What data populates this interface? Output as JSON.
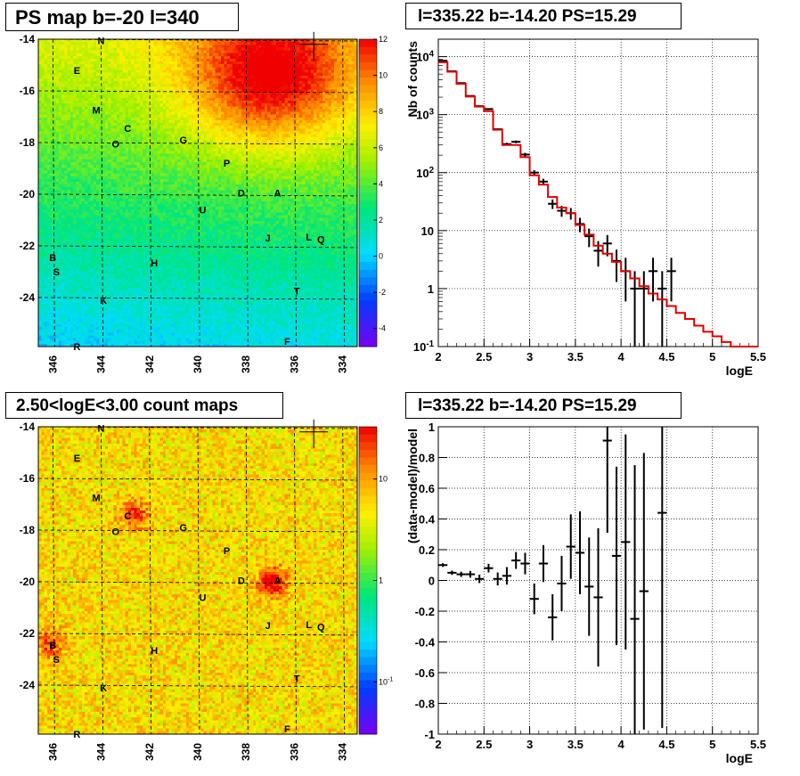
{
  "titles": {
    "map_top": "PS map b=-20 l=340",
    "spectrum": "l=335.22 b=-14.20 PS=15.29",
    "map_bottom": "2.50<logE<3.00 count maps",
    "residual": "l=335.22 b=-14.20 PS=15.29"
  },
  "sources": [
    {
      "label": "N",
      "l": 344.0,
      "b": -14.05
    },
    {
      "label": "E",
      "l": 345.0,
      "b": -15.2
    },
    {
      "label": "M",
      "l": 344.2,
      "b": -16.75
    },
    {
      "label": "C",
      "l": 342.9,
      "b": -17.45
    },
    {
      "label": "O",
      "l": 343.4,
      "b": -18.05
    },
    {
      "label": "G",
      "l": 340.6,
      "b": -17.9
    },
    {
      "label": "P",
      "l": 338.8,
      "b": -18.8
    },
    {
      "label": "D",
      "l": 338.2,
      "b": -19.95
    },
    {
      "label": "A",
      "l": 336.7,
      "b": -19.95
    },
    {
      "label": "U",
      "l": 339.8,
      "b": -20.6
    },
    {
      "label": "J",
      "l": 337.1,
      "b": -21.7
    },
    {
      "label": "L",
      "l": 335.4,
      "b": -21.65
    },
    {
      "label": "Q",
      "l": 334.9,
      "b": -21.75
    },
    {
      "label": "B",
      "l": 346.0,
      "b": -22.45
    },
    {
      "label": "S",
      "l": 345.85,
      "b": -23.0
    },
    {
      "label": "H",
      "l": 341.8,
      "b": -22.65
    },
    {
      "label": "T",
      "l": 335.9,
      "b": -23.75
    },
    {
      "label": "K",
      "l": 343.9,
      "b": -24.1
    },
    {
      "label": "F",
      "l": 336.3,
      "b": -25.7
    },
    {
      "label": "R",
      "l": 345.0,
      "b": -25.9
    }
  ],
  "chart_data": [
    {
      "type": "heatmap",
      "title": "PS map b=-20 l=340",
      "xlabel": "",
      "ylabel": "",
      "xlim": [
        346.6,
        333.4
      ],
      "ylim": [
        -25.9,
        -14.0
      ],
      "xticks": [
        346,
        344,
        342,
        340,
        338,
        336,
        334
      ],
      "yticks": [
        -14,
        -16,
        -18,
        -20,
        -22,
        -24
      ],
      "zlim": [
        -5,
        12
      ],
      "zticks": [
        12,
        10,
        8,
        6,
        4,
        2,
        0,
        -2,
        -4
      ],
      "colorscale": "rainbow",
      "description_features": {
        "hot_region": {
          "l_range": [
            334,
            340
          ],
          "b_range": [
            -14,
            -17.5
          ],
          "value": 12
        },
        "marker": {
          "l": 335.2,
          "b": -14.2,
          "symbol": "+"
        }
      }
    },
    {
      "type": "line",
      "title": "l=335.22 b=-14.20 PS=15.29",
      "xlabel": "logE",
      "ylabel": "Nb of counts",
      "xlim": [
        2,
        5.5
      ],
      "ylim": [
        0.1,
        20000
      ],
      "yscale": "log",
      "xticks": [
        "2",
        "2.5",
        "3",
        "3.5",
        "4",
        "4.5",
        "5",
        "5.5"
      ],
      "yticks": [
        "10^{-1}",
        "1",
        "10",
        "10^{2}",
        "10^{3}",
        "10^{4}"
      ],
      "grid": true,
      "series": [
        {
          "kind": "data",
          "color": "#000000",
          "x": [
            2.05,
            2.15,
            2.25,
            2.35,
            2.45,
            2.55,
            2.65,
            2.75,
            2.85,
            2.95,
            3.05,
            3.15,
            3.25,
            3.35,
            3.45,
            3.55,
            3.65,
            3.75,
            3.85,
            3.95,
            4.05,
            4.15,
            4.25,
            4.35,
            4.45,
            4.55
          ],
          "y": [
            8500,
            5600,
            3500,
            2100,
            1400,
            1250,
            560,
            310,
            340,
            205,
            100,
            70,
            29,
            22,
            20,
            13,
            8,
            4.5,
            6,
            3,
            2,
            1,
            1,
            2,
            1,
            2
          ],
          "yerr": [
            92,
            75,
            59,
            46,
            37,
            35,
            24,
            18,
            18,
            14,
            10,
            8.4,
            5.4,
            4.7,
            4.5,
            3.6,
            2.8,
            2.1,
            2.4,
            1.7,
            1.4,
            1,
            1,
            1.4,
            1,
            1.4
          ]
        },
        {
          "kind": "model",
          "color": "#e00000",
          "x": [
            2.05,
            2.15,
            2.25,
            2.35,
            2.45,
            2.55,
            2.65,
            2.75,
            2.85,
            2.95,
            3.05,
            3.15,
            3.25,
            3.35,
            3.45,
            3.55,
            3.65,
            3.75,
            3.85,
            3.95,
            4.05,
            4.15,
            4.25,
            4.35,
            4.45,
            4.55,
            4.65,
            4.75,
            4.85,
            4.95,
            5.05,
            5.15,
            5.25,
            5.35,
            5.45
          ],
          "y": [
            8000,
            5500,
            3400,
            2050,
            1380,
            1150,
            550,
            300,
            300,
            185,
            90,
            62,
            38,
            25,
            20,
            12.5,
            8.5,
            5.5,
            4,
            2.9,
            2,
            1.5,
            1.1,
            0.82,
            0.65,
            0.5,
            0.38,
            0.3,
            0.23,
            0.18,
            0.15,
            0.12,
            0.1,
            0.1,
            0.1
          ]
        }
      ]
    },
    {
      "type": "heatmap",
      "title": "2.50<logE<3.00 count maps",
      "xlabel": "",
      "ylabel": "",
      "xlim": [
        346.6,
        333.4
      ],
      "ylim": [
        -25.9,
        -14.0
      ],
      "xticks": [
        346,
        344,
        342,
        340,
        338,
        336,
        334
      ],
      "yticks": [
        -14,
        -16,
        -18,
        -20,
        -22,
        -24
      ],
      "zscale": "log",
      "zticks": [
        "10",
        "1",
        "10^{-1}"
      ],
      "colorscale": "rainbow",
      "description_features": {
        "bright_spots": [
          {
            "l": 336.9,
            "b": -20.0
          },
          {
            "l": 346.1,
            "b": -22.4
          },
          {
            "l": 342.6,
            "b": -17.4
          }
        ],
        "marker": {
          "l": 335.2,
          "b": -14.2,
          "symbol": "+"
        }
      }
    },
    {
      "type": "scatter",
      "title": "l=335.22 b=-14.20 PS=15.29",
      "xlabel": "logE",
      "ylabel": "(data-model)/model",
      "xlim": [
        2,
        5.5
      ],
      "ylim": [
        -1,
        1
      ],
      "xticks": [
        "2",
        "2.5",
        "3",
        "3.5",
        "4",
        "4.5",
        "5",
        "5.5"
      ],
      "yticks": [
        "-1",
        "-0.8",
        "-0.6",
        "-0.4",
        "-0.2",
        "0",
        "0.2",
        "0.4",
        "0.6",
        "0.8",
        "1"
      ],
      "grid": true,
      "series": [
        {
          "kind": "residual",
          "color": "#000000",
          "x": [
            2.05,
            2.15,
            2.25,
            2.35,
            2.45,
            2.55,
            2.65,
            2.75,
            2.85,
            2.95,
            3.05,
            3.15,
            3.25,
            3.35,
            3.45,
            3.55,
            3.65,
            3.75,
            3.85,
            3.95,
            4.05,
            4.15,
            4.25,
            4.45
          ],
          "y": [
            0.1,
            0.05,
            0.04,
            0.04,
            0.01,
            0.08,
            0.01,
            0.03,
            0.13,
            0.11,
            -0.12,
            0.11,
            -0.24,
            -0.02,
            0.22,
            0.18,
            -0.04,
            -0.11,
            0.91,
            0.16,
            0.25,
            -0.25,
            -0.07,
            0.44
          ],
          "yerr": [
            0.012,
            0.014,
            0.017,
            0.022,
            0.027,
            0.028,
            0.042,
            0.057,
            0.055,
            0.07,
            0.1,
            0.12,
            0.15,
            0.18,
            0.21,
            0.27,
            0.32,
            0.45,
            0.6,
            0.58,
            0.7,
            1.0,
            0.9,
            1.4
          ]
        }
      ]
    }
  ]
}
